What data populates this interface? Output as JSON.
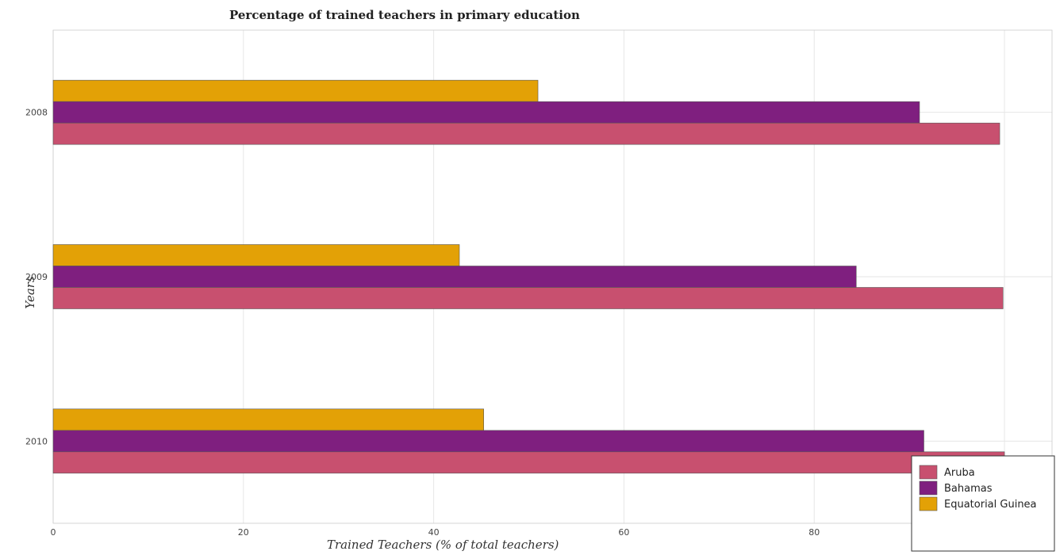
{
  "chart_data": {
    "type": "bar",
    "orientation": "horizontal",
    "title": "Percentage of trained teachers in primary education",
    "xlabel": "Trained Teachers (% of total teachers)",
    "ylabel": "Years",
    "categories": [
      "2008",
      "2009",
      "2010"
    ],
    "xlim": [
      0,
      105
    ],
    "xticks": [
      0,
      20,
      40,
      60,
      80,
      100
    ],
    "grid": true,
    "legend_position": "bottom-right",
    "series": [
      {
        "name": "Aruba",
        "color": "#c8506f",
        "values": [
          99.5,
          99.85,
          100
        ]
      },
      {
        "name": "Bahamas",
        "color": "#7f1f7f",
        "values": [
          91.07,
          84.42,
          91.53
        ]
      },
      {
        "name": "Equatorial Guinea",
        "color": "#e3a106",
        "values": [
          50.96,
          42.7,
          45.26
        ]
      }
    ]
  }
}
